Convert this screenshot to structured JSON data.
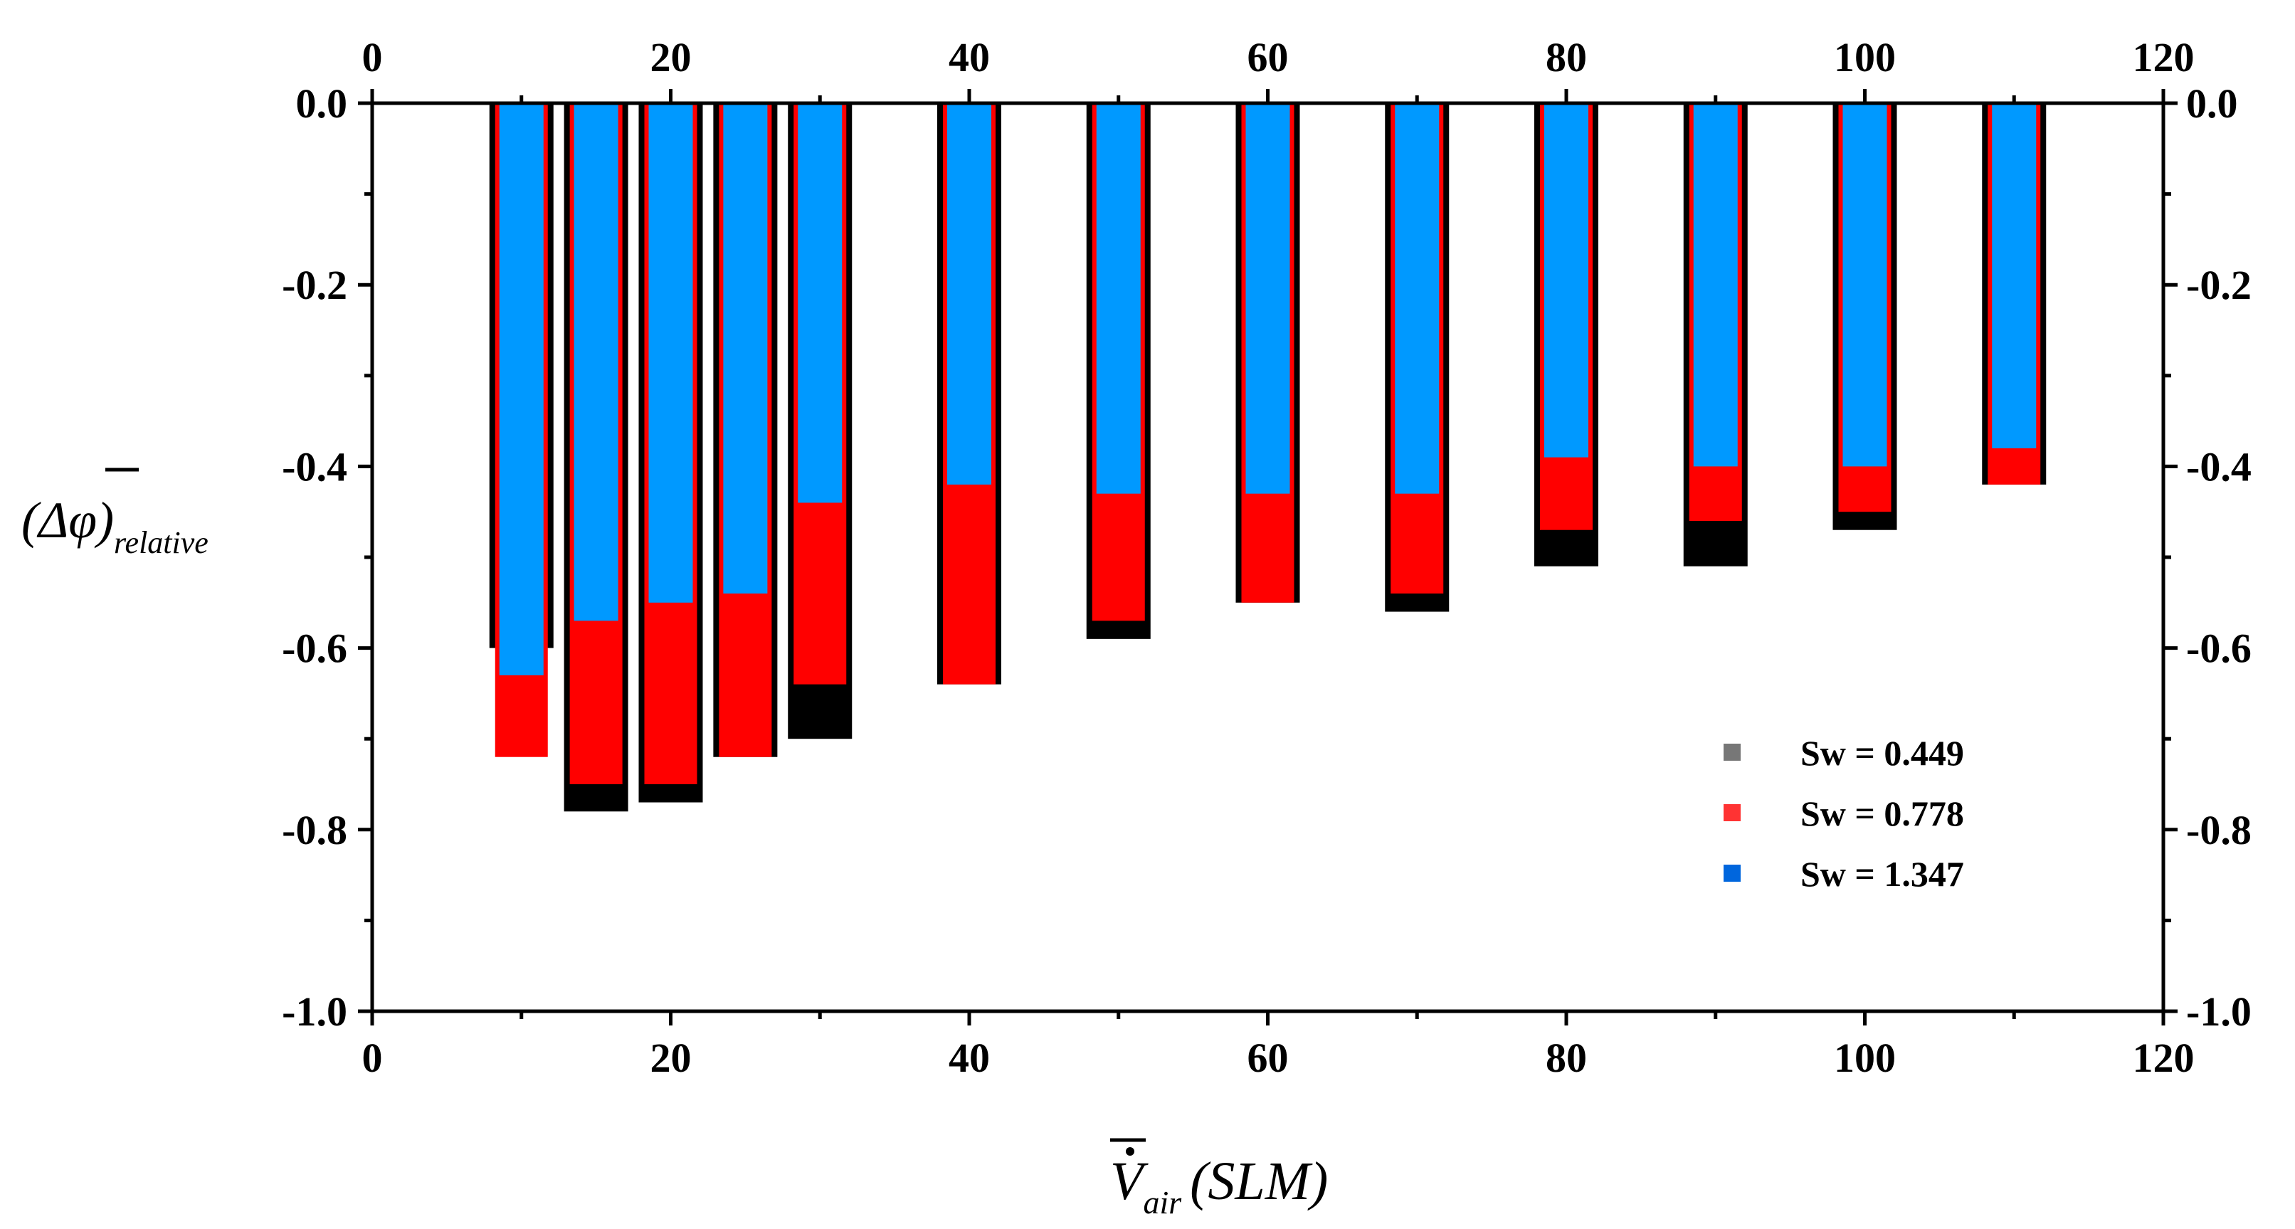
{
  "chart_data": {
    "type": "bar",
    "xlabel": {
      "base": "V",
      "sub": "air",
      "unit": "(SLM)"
    },
    "ylabel": {
      "base": "(Δφ)",
      "sub": "relative"
    },
    "xlim": [
      0,
      120
    ],
    "ylim": [
      -1.0,
      0.0
    ],
    "x_ticks": [
      "0",
      "20",
      "40",
      "60",
      "80",
      "100",
      "120"
    ],
    "y_ticks": [
      "0.0",
      "-0.2",
      "-0.4",
      "-0.6",
      "-0.8",
      "-1.0"
    ],
    "legend_position": "lower-right",
    "x": [
      10,
      15,
      20,
      25,
      30,
      40,
      50,
      60,
      70,
      80,
      90,
      100,
      110
    ],
    "series": [
      {
        "name": "Sw = 0.449",
        "legend_color": "#777777",
        "bar_color": "#000000",
        "values": [
          -0.6,
          -0.78,
          -0.77,
          -0.72,
          -0.7,
          -0.64,
          -0.59,
          -0.55,
          -0.56,
          -0.51,
          -0.51,
          -0.47,
          -0.42
        ]
      },
      {
        "name": "Sw = 0.778",
        "legend_color": "#ff3333",
        "bar_color": "#ff0000",
        "values": [
          -0.72,
          -0.75,
          -0.75,
          -0.72,
          -0.64,
          -0.64,
          -0.57,
          -0.55,
          -0.54,
          -0.47,
          -0.46,
          -0.45,
          -0.42
        ]
      },
      {
        "name": "Sw = 1.347",
        "legend_color": "#0066dd",
        "bar_color": "#0099ff",
        "values": [
          -0.63,
          -0.57,
          -0.55,
          -0.54,
          -0.44,
          -0.42,
          -0.43,
          -0.43,
          -0.43,
          -0.39,
          -0.4,
          -0.4,
          -0.38
        ]
      }
    ]
  }
}
